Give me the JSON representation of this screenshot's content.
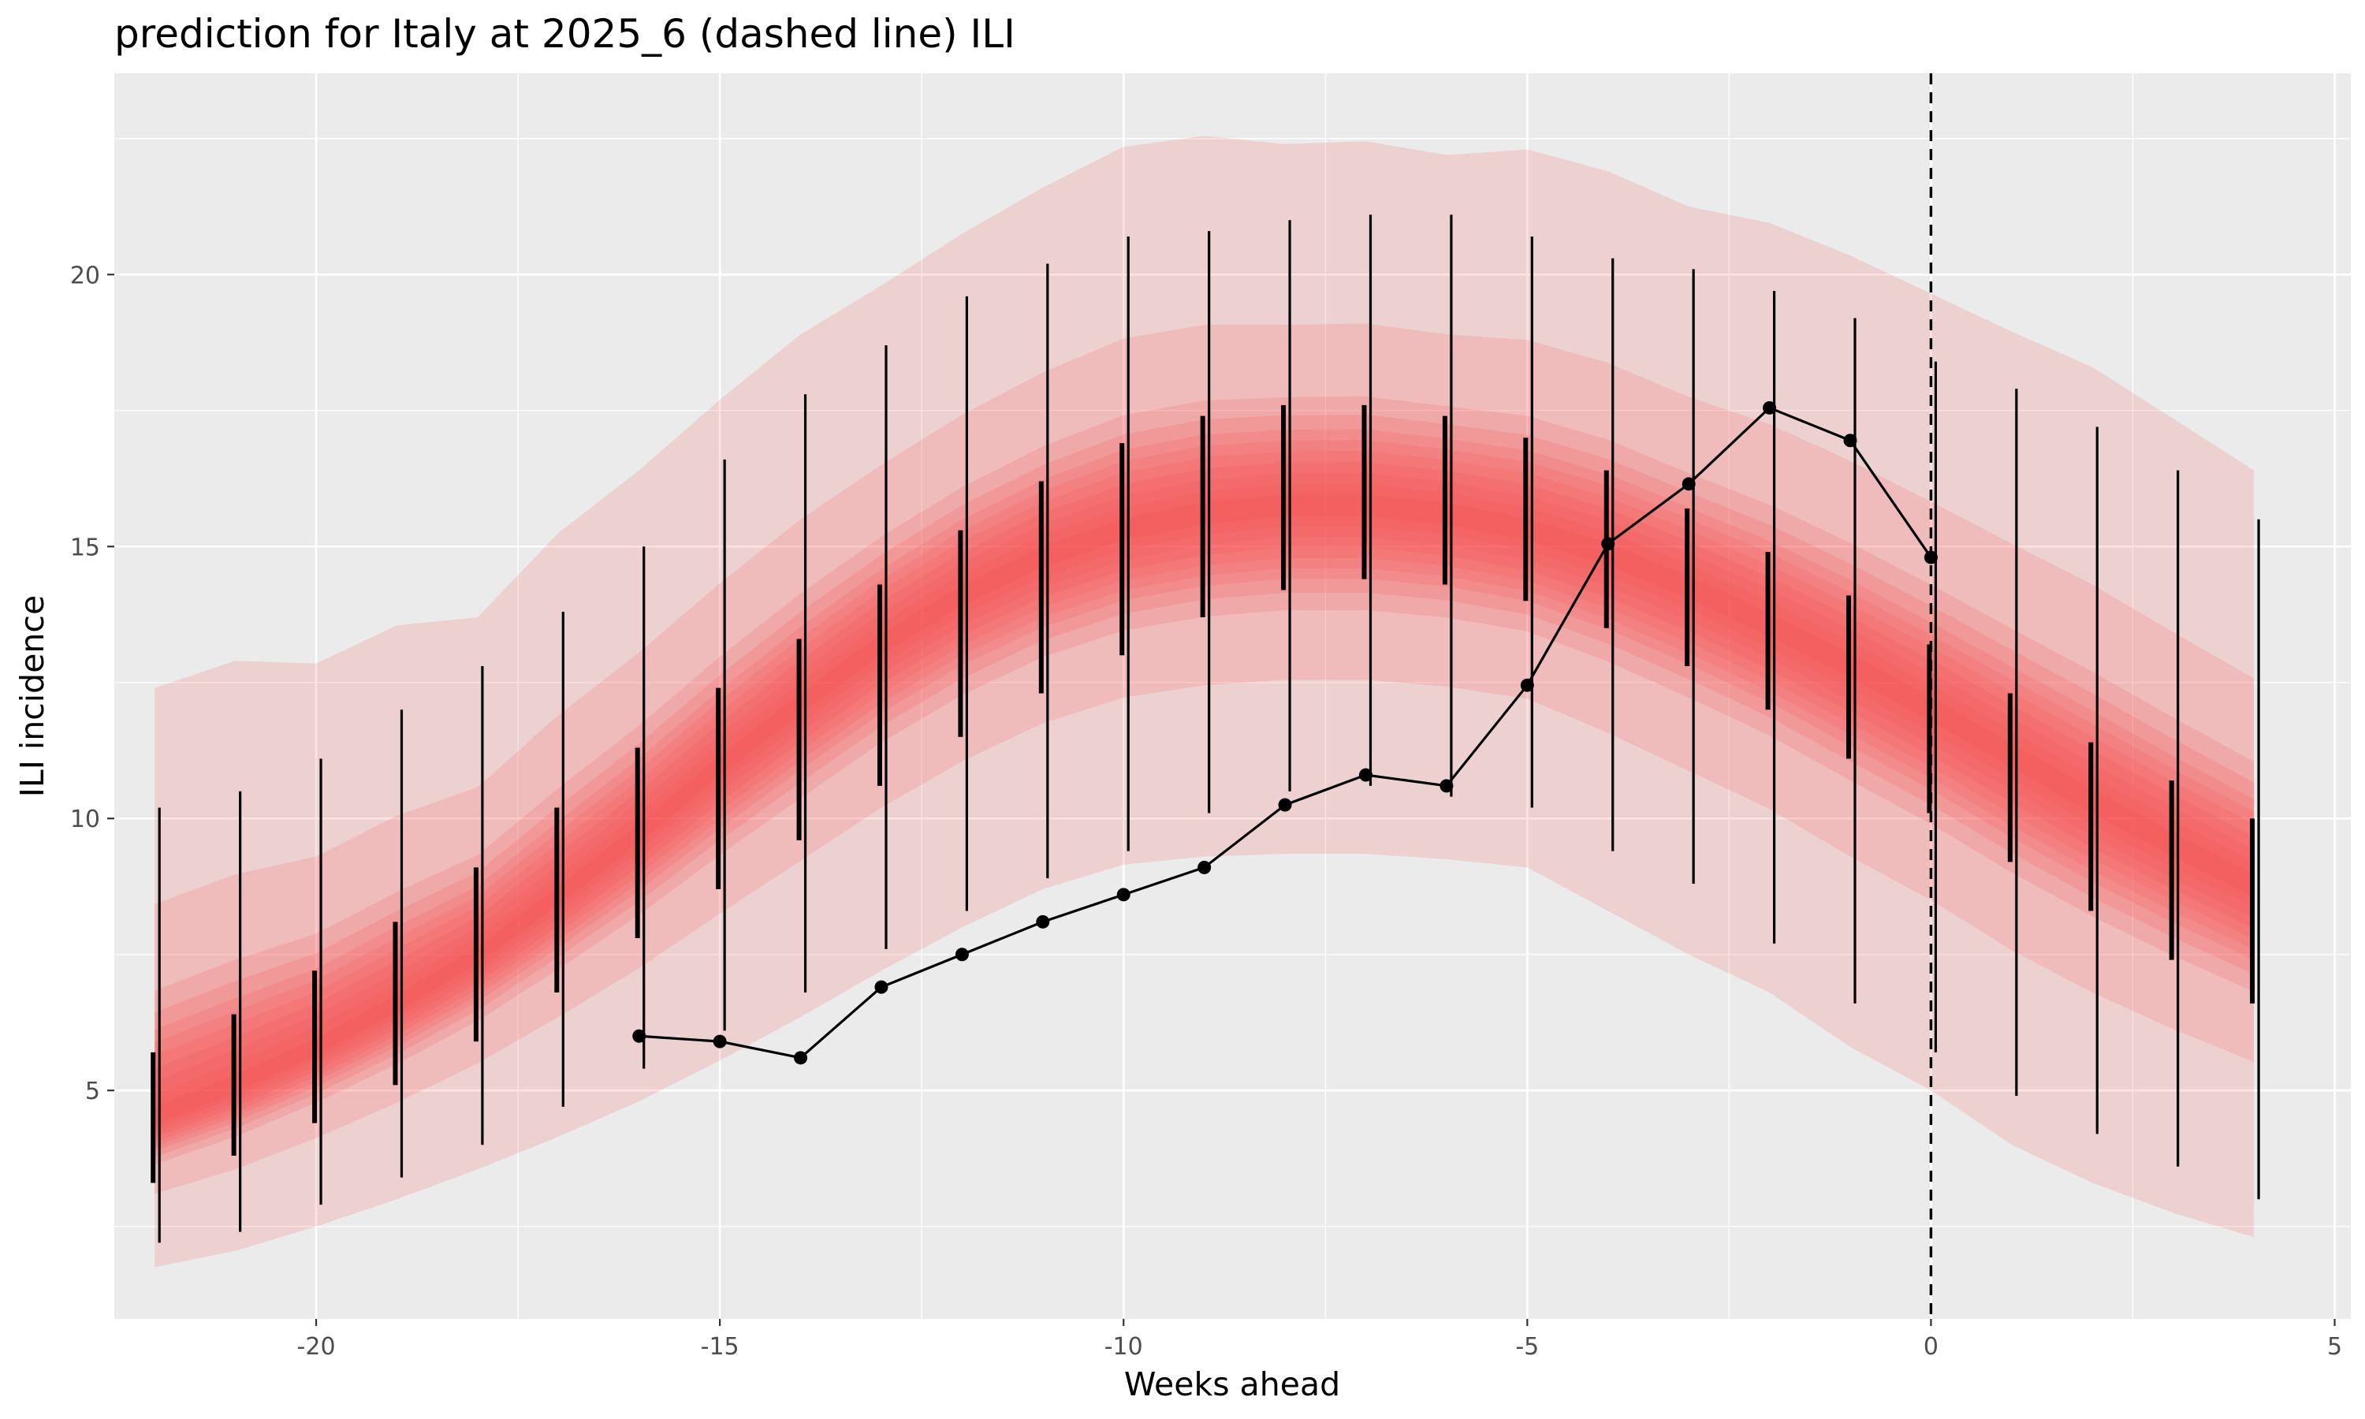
{
  "chart_data": {
    "type": "line",
    "title": "prediction for Italy at 2025_6 (dashed line) ILI",
    "xlabel": "Weeks ahead",
    "ylabel": "ILI incidence",
    "xlim": [
      -22.5,
      5.2
    ],
    "ylim": [
      0.8,
      23.7
    ],
    "x_ticks": [
      -20,
      -15,
      -10,
      -5,
      0,
      5
    ],
    "y_ticks": [
      5,
      10,
      15,
      20
    ],
    "grid": true,
    "panel_color": "#ebebeb",
    "band_color": "#f8484a",
    "reference_line": {
      "x": 0,
      "style": "dashed",
      "color": "#000000"
    },
    "forecast_weeks": [
      -22,
      -21,
      -20,
      -19,
      -18,
      -17,
      -16,
      -15,
      -14,
      -13,
      -12,
      -11,
      -10,
      -9,
      -8,
      -7,
      -6,
      -5,
      -4,
      -3,
      -2,
      -1,
      0,
      1,
      2,
      3,
      4
    ],
    "median": [
      4.45,
      5.05,
      5.75,
      6.55,
      7.45,
      8.55,
      9.7,
      10.95,
      12.1,
      13.2,
      14.1,
      14.8,
      15.3,
      15.6,
      15.75,
      15.75,
      15.6,
      15.3,
      14.85,
      14.25,
      13.55,
      12.8,
      12.0,
      11.15,
      10.3,
      9.5,
      8.75
    ],
    "band_ratios": [
      0.03,
      0.06,
      0.09,
      0.12,
      0.15,
      0.18,
      0.21,
      0.25,
      0.3,
      0.5,
      1.0
    ],
    "outer_band": {
      "lower": [
        1.75,
        2.05,
        2.5,
        3.0,
        3.55,
        4.15,
        4.8,
        5.55,
        6.35,
        7.2,
        8.0,
        8.7,
        9.15,
        9.3,
        9.35,
        9.35,
        9.25,
        9.1,
        8.3,
        7.5,
        6.8,
        5.8,
        5.0,
        4.0,
        3.3,
        2.75,
        2.3
      ],
      "upper": [
        12.4,
        12.9,
        12.85,
        13.55,
        13.7,
        15.25,
        16.4,
        17.7,
        18.9,
        19.8,
        20.75,
        21.6,
        22.35,
        22.55,
        22.4,
        22.45,
        22.2,
        22.3,
        21.9,
        21.25,
        20.95,
        20.35,
        19.65,
        18.95,
        18.3,
        17.35,
        16.4
      ]
    },
    "interval_80": {
      "lower": [
        2.2,
        2.4,
        2.9,
        3.4,
        4.0,
        4.7,
        5.4,
        6.1,
        6.8,
        7.6,
        8.3,
        8.9,
        9.4,
        10.1,
        10.5,
        10.6,
        10.4,
        10.2,
        9.4,
        8.8,
        7.7,
        6.6,
        5.7,
        4.9,
        4.2,
        3.6,
        3.0
      ],
      "upper": [
        10.2,
        10.5,
        11.1,
        12.0,
        12.8,
        13.8,
        15.0,
        16.6,
        17.8,
        18.7,
        19.6,
        20.2,
        20.7,
        20.8,
        21.0,
        21.1,
        21.1,
        20.7,
        20.3,
        20.1,
        19.7,
        19.2,
        18.4,
        17.9,
        17.2,
        16.4,
        15.5
      ]
    },
    "interval_50": {
      "lower": [
        3.3,
        3.8,
        4.4,
        5.1,
        5.9,
        6.8,
        7.8,
        8.7,
        9.6,
        10.6,
        11.5,
        12.3,
        13.0,
        13.7,
        14.2,
        14.4,
        14.3,
        14.0,
        13.5,
        12.8,
        12.0,
        11.1,
        10.1,
        9.2,
        8.3,
        7.4,
        6.6
      ],
      "upper": [
        5.7,
        6.4,
        7.2,
        8.1,
        9.1,
        10.2,
        11.3,
        12.4,
        13.3,
        14.3,
        15.3,
        16.2,
        16.9,
        17.4,
        17.6,
        17.6,
        17.4,
        17.0,
        16.4,
        15.7,
        14.9,
        14.1,
        13.2,
        12.3,
        11.4,
        10.7,
        10.0
      ]
    },
    "observed": {
      "x": [
        -16,
        -15,
        -14,
        -13,
        -12,
        -11,
        -10,
        -9,
        -8,
        -7,
        -6,
        -5,
        -4,
        -3,
        -2,
        -1,
        0
      ],
      "y": [
        6.0,
        5.9,
        5.6,
        6.9,
        7.5,
        8.1,
        8.6,
        9.1,
        10.25,
        10.8,
        10.6,
        12.45,
        15.05,
        16.15,
        17.55,
        16.95,
        14.8
      ]
    }
  }
}
